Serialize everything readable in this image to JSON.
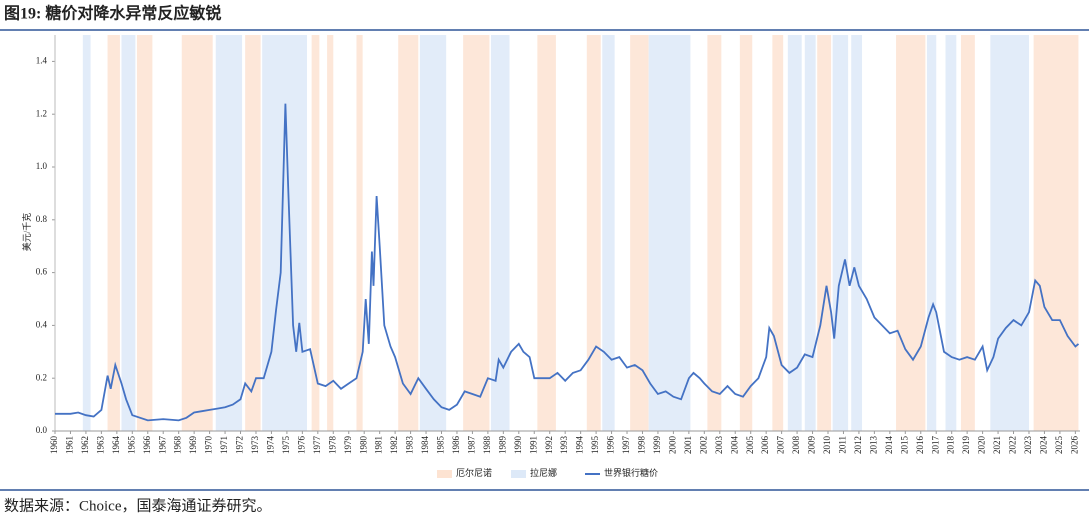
{
  "chart_data": {
    "type": "line",
    "title": "图19: 糖价对降水异常反应敏锐",
    "source": "数据来源：Choice，国泰海通证券研究。",
    "y_label": "美元/千克",
    "xlim": [
      1960,
      2026.3
    ],
    "xticks": [
      1960,
      1961,
      1962,
      1963,
      1964,
      1965,
      1966,
      1967,
      1968,
      1969,
      1970,
      1971,
      1972,
      1973,
      1974,
      1975,
      1976,
      1977,
      1978,
      1979,
      1980,
      1981,
      1982,
      1983,
      1984,
      1985,
      1986,
      1987,
      1988,
      1989,
      1990,
      1991,
      1992,
      1993,
      1994,
      1995,
      1996,
      1997,
      1998,
      1999,
      2000,
      2001,
      2002,
      2003,
      2004,
      2005,
      2006,
      2007,
      2008,
      2009,
      2010,
      2011,
      2012,
      2013,
      2014,
      2015,
      2016,
      2017,
      2018,
      2019,
      2020,
      2021,
      2022,
      2023,
      2024,
      2025,
      2026
    ],
    "ylim": [
      0,
      1.5
    ],
    "yticks": [
      {
        "value": 0,
        "label": "0.0"
      },
      {
        "value": 0.2,
        "label": "0.2"
      },
      {
        "value": 0.4,
        "label": "0.4"
      },
      {
        "value": 0.6,
        "label": "0.6"
      },
      {
        "value": 0.8,
        "label": "0.8"
      },
      {
        "value": 1,
        "label": "1.0"
      },
      {
        "value": 1.2,
        "label": "1.2"
      },
      {
        "value": 1.4,
        "label": "1.4"
      }
    ],
    "periods": [
      {
        "name": "厄尔尼诺",
        "color": "#fde3d2",
        "ranges": [
          [
            1963.4,
            1964.2
          ],
          [
            1965.3,
            1966.3
          ],
          [
            1968.2,
            1970.2
          ],
          [
            1972.3,
            1973.3
          ],
          [
            1976.6,
            1977.1
          ],
          [
            1977.6,
            1978.0
          ],
          [
            1979.5,
            1979.9
          ],
          [
            1982.2,
            1983.5
          ],
          [
            1986.4,
            1988.1
          ],
          [
            1991.2,
            1992.4
          ],
          [
            1994.4,
            1995.3
          ],
          [
            1997.2,
            1998.4
          ],
          [
            2002.2,
            2003.1
          ],
          [
            2004.3,
            2005.1
          ],
          [
            2006.4,
            2007.1
          ],
          [
            2009.3,
            2010.2
          ],
          [
            2014.4,
            2016.3
          ],
          [
            2018.6,
            2019.5
          ],
          [
            2023.3,
            2026.2
          ]
        ]
      },
      {
        "name": "拉尼娜",
        "color": "#dde9f8",
        "ranges": [
          [
            1961.8,
            1962.3
          ],
          [
            1964.3,
            1965.2
          ],
          [
            1970.4,
            1972.1
          ],
          [
            1973.4,
            1976.3
          ],
          [
            1983.6,
            1985.3
          ],
          [
            1988.2,
            1989.4
          ],
          [
            1995.4,
            1996.2
          ],
          [
            1998.4,
            2001.1
          ],
          [
            2007.4,
            2008.3
          ],
          [
            2008.5,
            2009.2
          ],
          [
            2010.3,
            2011.3
          ],
          [
            2011.5,
            2012.2
          ],
          [
            2016.4,
            2017.0
          ],
          [
            2017.6,
            2018.3
          ],
          [
            2020.5,
            2023.0
          ]
        ]
      }
    ],
    "series": [
      {
        "name": "世界银行糖价",
        "color": "#4472c4",
        "x": [
          1960,
          1961,
          1961.5,
          1962,
          1962.5,
          1963,
          1963.4,
          1963.6,
          1963.9,
          1964.3,
          1964.6,
          1965,
          1966,
          1967,
          1968,
          1968.5,
          1969,
          1969.5,
          1970,
          1970.5,
          1971,
          1971.5,
          1972,
          1972.3,
          1972.7,
          1973,
          1973.5,
          1974,
          1974.3,
          1974.6,
          1974.9,
          1975.1,
          1975.4,
          1975.6,
          1975.8,
          1976,
          1976.5,
          1977,
          1977.5,
          1978,
          1978.5,
          1979,
          1979.5,
          1979.9,
          1980.1,
          1980.3,
          1980.5,
          1980.6,
          1980.8,
          1981,
          1981.3,
          1981.7,
          1982,
          1982.5,
          1983,
          1983.5,
          1984,
          1984.5,
          1985,
          1985.5,
          1986,
          1986.5,
          1987,
          1987.5,
          1988,
          1988.5,
          1988.7,
          1989,
          1989.5,
          1990,
          1990.3,
          1990.7,
          1991,
          1991.5,
          1992,
          1992.5,
          1993,
          1993.5,
          1994,
          1994.5,
          1995,
          1995.5,
          1996,
          1996.5,
          1997,
          1997.5,
          1998,
          1998.5,
          1999,
          1999.5,
          2000,
          2000.5,
          2001,
          2001.3,
          2001.7,
          2002,
          2002.5,
          2003,
          2003.5,
          2004,
          2004.5,
          2005,
          2005.5,
          2006,
          2006.2,
          2006.5,
          2007,
          2007.5,
          2008,
          2008.5,
          2009,
          2009.5,
          2009.9,
          2010.2,
          2010.4,
          2010.7,
          2011.1,
          2011.4,
          2011.7,
          2012,
          2012.5,
          2013,
          2013.5,
          2014,
          2014.5,
          2015,
          2015.5,
          2016,
          2016.5,
          2016.8,
          2017,
          2017.5,
          2018,
          2018.5,
          2019,
          2019.5,
          2020,
          2020.3,
          2020.7,
          2021,
          2021.5,
          2022,
          2022.5,
          2023,
          2023.4,
          2023.7,
          2024,
          2024.5,
          2025,
          2025.5,
          2026,
          2026.2
        ],
        "values": [
          0.065,
          0.065,
          0.07,
          0.06,
          0.055,
          0.08,
          0.21,
          0.16,
          0.25,
          0.18,
          0.12,
          0.06,
          0.04,
          0.045,
          0.04,
          0.05,
          0.07,
          0.075,
          0.08,
          0.085,
          0.09,
          0.1,
          0.12,
          0.18,
          0.15,
          0.2,
          0.2,
          0.3,
          0.46,
          0.6,
          1.24,
          0.9,
          0.4,
          0.3,
          0.41,
          0.3,
          0.31,
          0.18,
          0.17,
          0.19,
          0.16,
          0.18,
          0.2,
          0.3,
          0.5,
          0.33,
          0.68,
          0.55,
          0.89,
          0.7,
          0.4,
          0.32,
          0.28,
          0.18,
          0.14,
          0.2,
          0.16,
          0.12,
          0.09,
          0.08,
          0.1,
          0.15,
          0.14,
          0.13,
          0.2,
          0.19,
          0.27,
          0.24,
          0.3,
          0.33,
          0.3,
          0.28,
          0.2,
          0.2,
          0.2,
          0.22,
          0.19,
          0.22,
          0.23,
          0.27,
          0.32,
          0.3,
          0.27,
          0.28,
          0.24,
          0.25,
          0.23,
          0.18,
          0.14,
          0.15,
          0.13,
          0.12,
          0.2,
          0.22,
          0.2,
          0.18,
          0.15,
          0.14,
          0.17,
          0.14,
          0.13,
          0.17,
          0.2,
          0.28,
          0.39,
          0.36,
          0.25,
          0.22,
          0.24,
          0.29,
          0.28,
          0.4,
          0.55,
          0.45,
          0.35,
          0.55,
          0.65,
          0.55,
          0.62,
          0.55,
          0.5,
          0.43,
          0.4,
          0.37,
          0.38,
          0.31,
          0.27,
          0.32,
          0.43,
          0.48,
          0.45,
          0.3,
          0.28,
          0.27,
          0.28,
          0.27,
          0.32,
          0.23,
          0.28,
          0.35,
          0.39,
          0.42,
          0.4,
          0.45,
          0.57,
          0.55,
          0.47,
          0.42,
          0.42,
          0.36,
          0.32,
          0.33
        ]
      }
    ]
  }
}
